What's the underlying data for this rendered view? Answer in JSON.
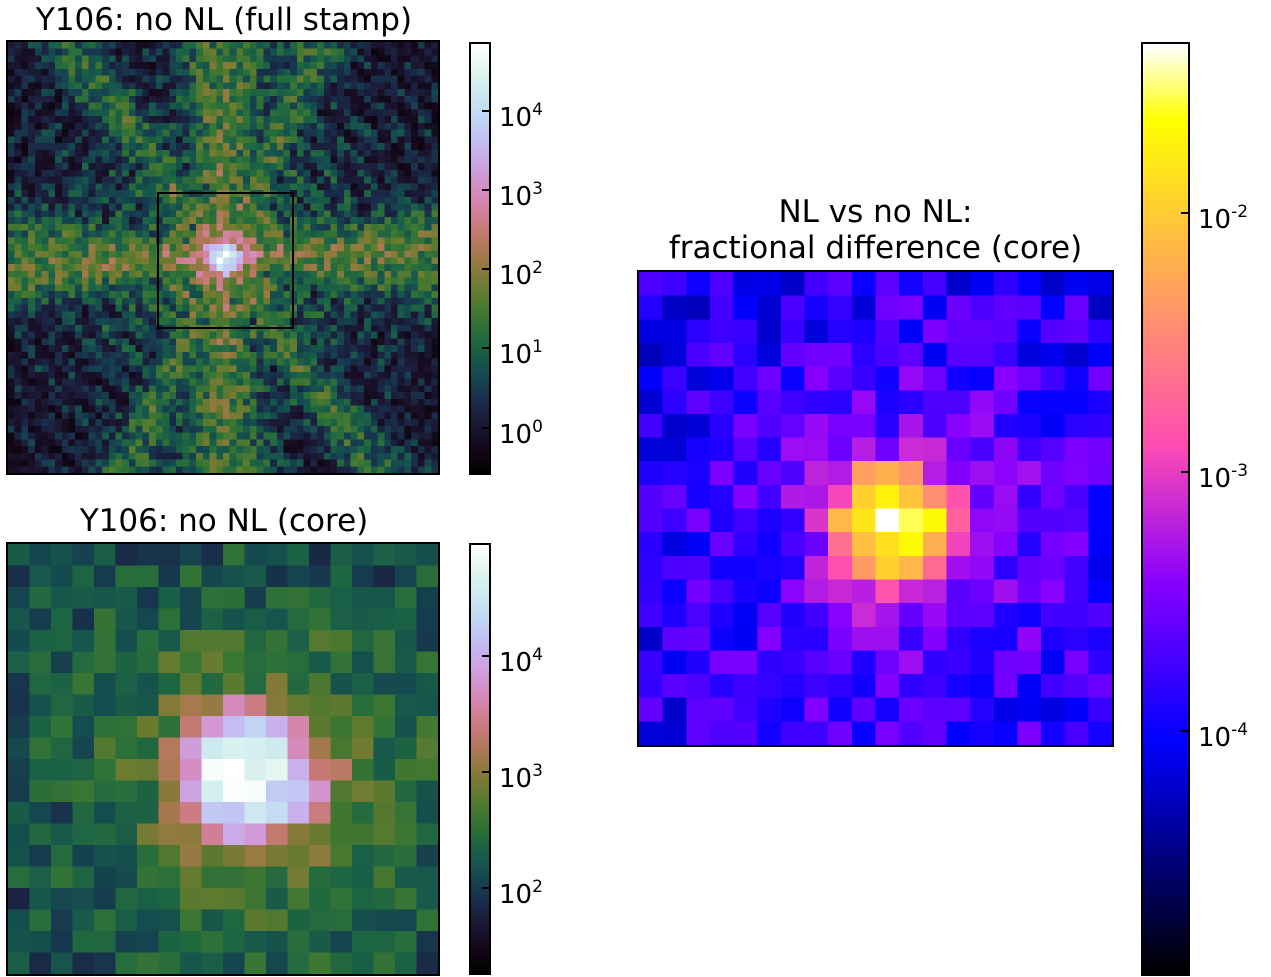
{
  "chart_data": [
    {
      "type": "heatmap",
      "title": "Y106: no NL (full stamp)",
      "colormap": "cubehelix",
      "scale": "log",
      "colorbar": {
        "range": [
          0.3,
          70000
        ],
        "ticks": [
          {
            "value": 1,
            "base": "10",
            "exp": "0"
          },
          {
            "value": 10,
            "base": "10",
            "exp": "1"
          },
          {
            "value": 100,
            "base": "10",
            "exp": "2"
          },
          {
            "value": 1000,
            "base": "10",
            "exp": "3"
          },
          {
            "value": 10000,
            "base": "10",
            "exp": "4"
          }
        ]
      },
      "inset_box": "core region",
      "peak": 70000
    },
    {
      "type": "heatmap",
      "title": "Y106: no NL (core)",
      "colormap": "cubehelix",
      "scale": "log",
      "colorbar": {
        "range": [
          20,
          90000
        ],
        "ticks": [
          {
            "value": 100,
            "base": "10",
            "exp": "2"
          },
          {
            "value": 1000,
            "base": "10",
            "exp": "3"
          },
          {
            "value": 10000,
            "base": "10",
            "exp": "4"
          }
        ]
      },
      "peak": 90000
    },
    {
      "type": "heatmap",
      "title_lines": [
        "NL vs no NL:",
        "fractional difference (core)"
      ],
      "colormap": "gnuplot2",
      "scale": "log",
      "colorbar": {
        "range": [
          1.2e-05,
          0.045
        ],
        "ticks": [
          {
            "value": 0.0001,
            "base": "10",
            "exp": "-4"
          },
          {
            "value": 0.001,
            "base": "10",
            "exp": "-3"
          },
          {
            "value": 0.01,
            "base": "10",
            "exp": "-2"
          }
        ]
      },
      "peak": 0.04
    }
  ]
}
